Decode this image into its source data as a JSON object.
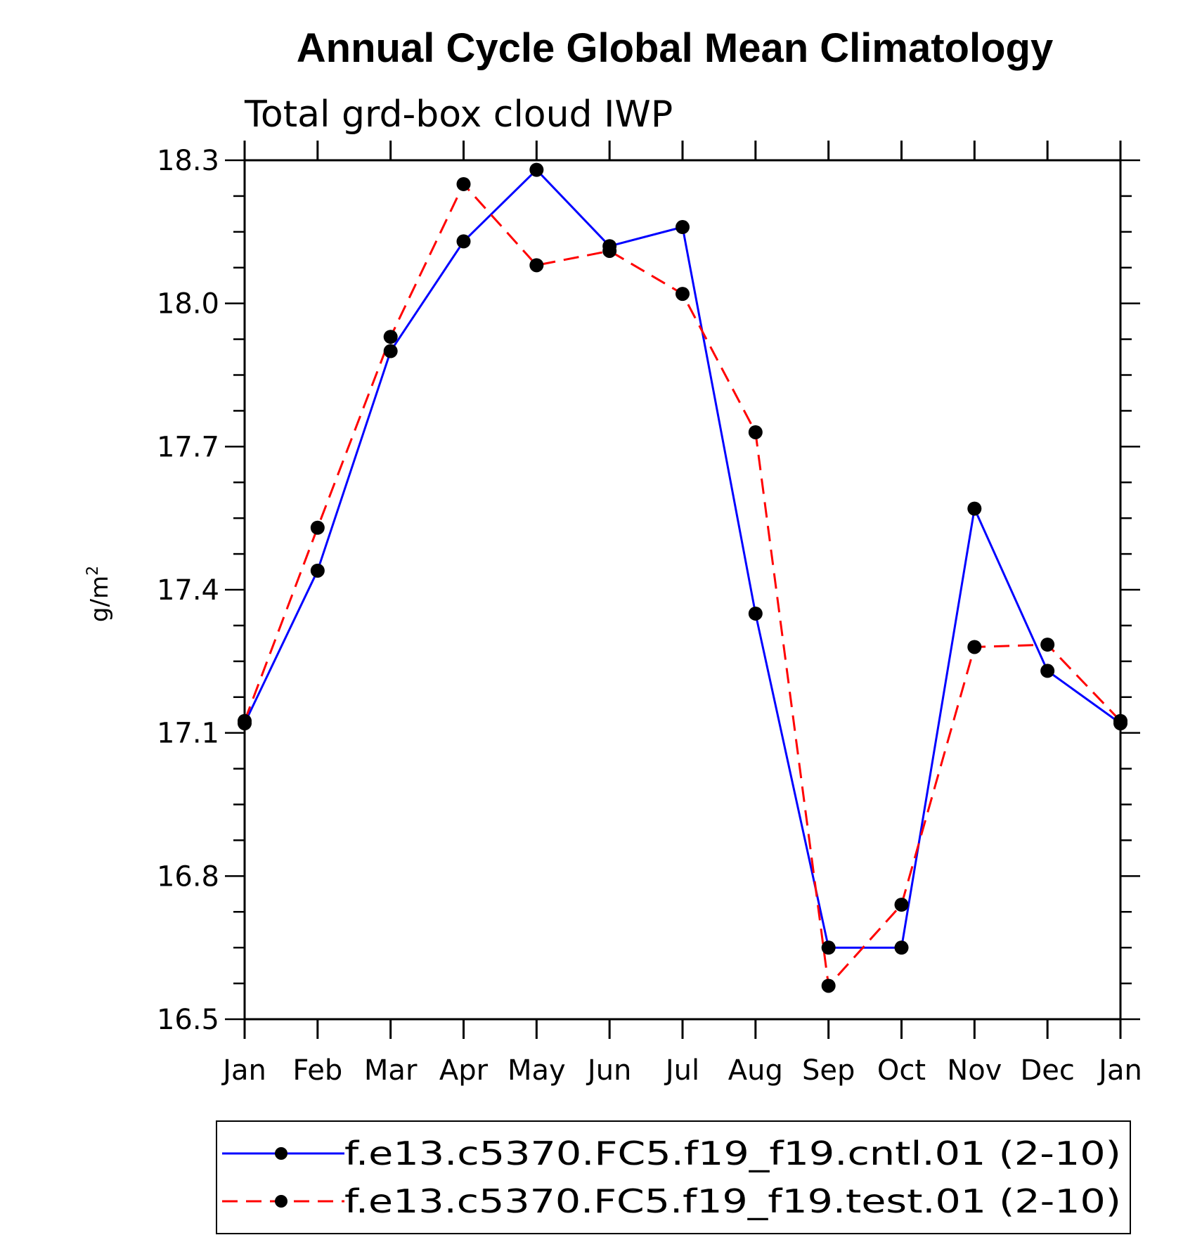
{
  "chart_data": {
    "type": "line",
    "title": "Annual Cycle Global Mean Climatology",
    "subtitle": "Total grd-box cloud IWP",
    "xlabel": "",
    "ylabel": "g/m",
    "ylabel_superscript": "2",
    "categories": [
      "Jan",
      "Feb",
      "Mar",
      "Apr",
      "May",
      "Jun",
      "Jul",
      "Aug",
      "Sep",
      "Oct",
      "Nov",
      "Dec",
      "Jan"
    ],
    "ylim": [
      16.5,
      18.3
    ],
    "yticks": [
      16.5,
      16.8,
      17.1,
      17.4,
      17.7,
      18.0,
      18.3
    ],
    "ytick_labels": [
      "16.5",
      "16.8",
      "17.1",
      "17.4",
      "17.7",
      "18.0",
      "18.3"
    ],
    "minor_ticks_per_major": 3,
    "grid": false,
    "legend_position": "bottom",
    "series": [
      {
        "name": "f.e13.c5370.FC5.f19_f19.cntl.01 (2-10)",
        "color": "#0000ff",
        "line_style": "solid",
        "marker": "filled-circle",
        "values": [
          17.12,
          17.44,
          17.9,
          18.13,
          18.28,
          18.12,
          18.16,
          17.35,
          16.65,
          16.65,
          17.57,
          17.23,
          17.12
        ]
      },
      {
        "name": "f.e13.c5370.FC5.f19_f19.test.01 (2-10)",
        "color": "#ff0000",
        "line_style": "dashed",
        "marker": "filled-circle",
        "values": [
          17.125,
          17.53,
          17.93,
          18.25,
          18.08,
          18.11,
          18.02,
          17.73,
          16.57,
          16.74,
          17.28,
          17.285,
          17.125
        ]
      }
    ]
  }
}
